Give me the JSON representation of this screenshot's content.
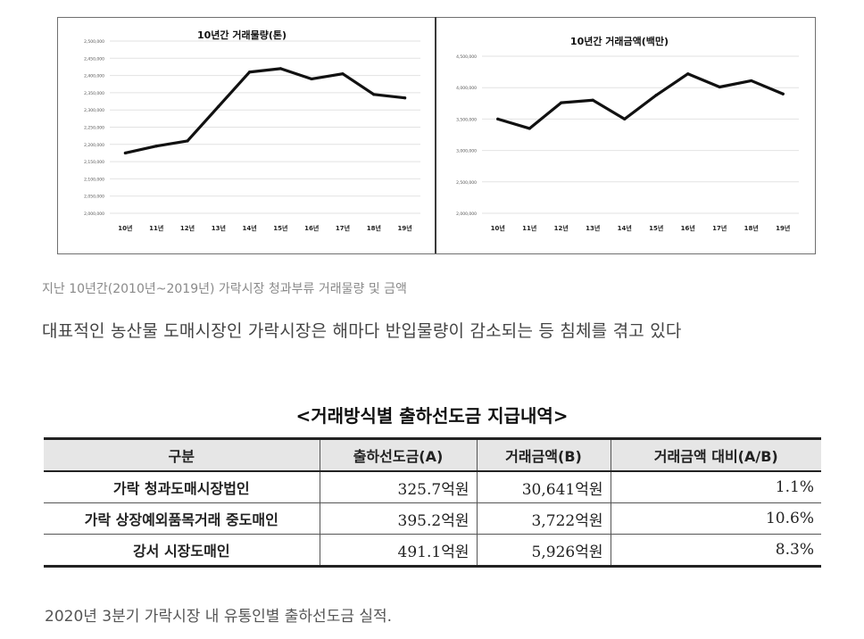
{
  "chart_data": [
    {
      "type": "line",
      "title": "10년간 거래물량(톤)",
      "categories": [
        "10년",
        "11년",
        "12년",
        "13년",
        "14년",
        "15년",
        "16년",
        "17년",
        "18년",
        "19년"
      ],
      "values": [
        2175000,
        2195000,
        2210000,
        2310000,
        2410000,
        2420000,
        2390000,
        2405000,
        2345000,
        2335000
      ],
      "ylim": [
        2000000,
        2500000
      ],
      "yticks": [
        "2,000,000",
        "2,050,000",
        "2,100,000",
        "2,150,000",
        "2,200,000",
        "2,250,000",
        "2,300,000",
        "2,350,000",
        "2,400,000",
        "2,450,000",
        "2,500,000"
      ],
      "grid": true,
      "color": "#111111"
    },
    {
      "type": "line",
      "title": "10년간 거래금액(백만)",
      "categories": [
        "10년",
        "11년",
        "12년",
        "13년",
        "14년",
        "15년",
        "16년",
        "17년",
        "18년",
        "19년"
      ],
      "values": [
        3500000,
        3350000,
        3760000,
        3800000,
        3500000,
        3880000,
        4220000,
        4010000,
        4110000,
        3900000
      ],
      "ylim": [
        2000000,
        4500000
      ],
      "yticks": [
        "2,000,000",
        "2,500,000",
        "3,000,000",
        "3,500,000",
        "4,000,000",
        "4,500,000"
      ],
      "grid": true,
      "color": "#111111"
    }
  ],
  "captions": {
    "chart_caption": "지난 10년간(2010년~2019년) 가락시장 청과부류 거래물량 및 금액",
    "sentence": "대표적인 농산물 도매시장인 가락시장은 해마다 반입물량이 감소되는 등 침체를 겪고 있다",
    "table_caption": "2020년 3분기 가락시장 내 유통인별 출하선도금 실적."
  },
  "table": {
    "title": "<거래방식별 출하선도금 지급내역>",
    "headers": [
      "구분",
      "출하선도금(A)",
      "거래금액(B)",
      "거래금액 대비(A/B)"
    ],
    "rows": [
      [
        "가락 청과도매시장법인",
        "325.7억원",
        "30,641억원",
        "1.1%"
      ],
      [
        "가락 상장예외품목거래 중도매인",
        "395.2억원",
        "3,722억원",
        "10.6%"
      ],
      [
        "강서 시장도매인",
        "491.1억원",
        "5,926억원",
        "8.3%"
      ]
    ]
  }
}
